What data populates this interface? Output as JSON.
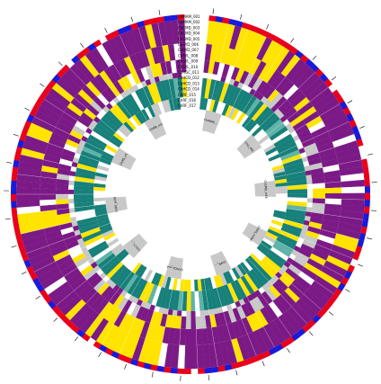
{
  "figure": {
    "type": "circular-genome-heatmap",
    "segment_count": 160,
    "gap_after_segment": 160,
    "colors": {
      "background": "#ffffff",
      "purple": "#7b1a86",
      "yellow": "#ffe400",
      "teal": "#17807a",
      "light_teal": "#5fb3a8",
      "gray": "#c8c8c8",
      "white": "#ffffff",
      "red": "#e8001c",
      "blue": "#1a1ad9",
      "black": "#000000"
    },
    "inner_labels": [
      "ChMAM_...",
      "Chl2_PRC",
      "ChCMD_m5b",
      "ChMS_m5aC",
      "ChPR_...",
      "ChHCD_m4",
      "ChLCC_...",
      "ChRF_m2A",
      "ChMS_u5",
      "ChMB_m3"
    ],
    "stack_labels": [
      "ChMAM_001",
      "ChMAM_002",
      "ChCMD_003",
      "ChCMD_004",
      "ChCMD_005",
      "ChRYD_006",
      "ChRYD_007",
      "ChSYL_008",
      "ChSYL_009",
      "ChSYL_010",
      "ChRGC_011",
      "ChHCD_012",
      "ChHCD_013",
      "ChHCD_014",
      "ChRF_015",
      "ChRF_016",
      "ChRF_017"
    ]
  }
}
